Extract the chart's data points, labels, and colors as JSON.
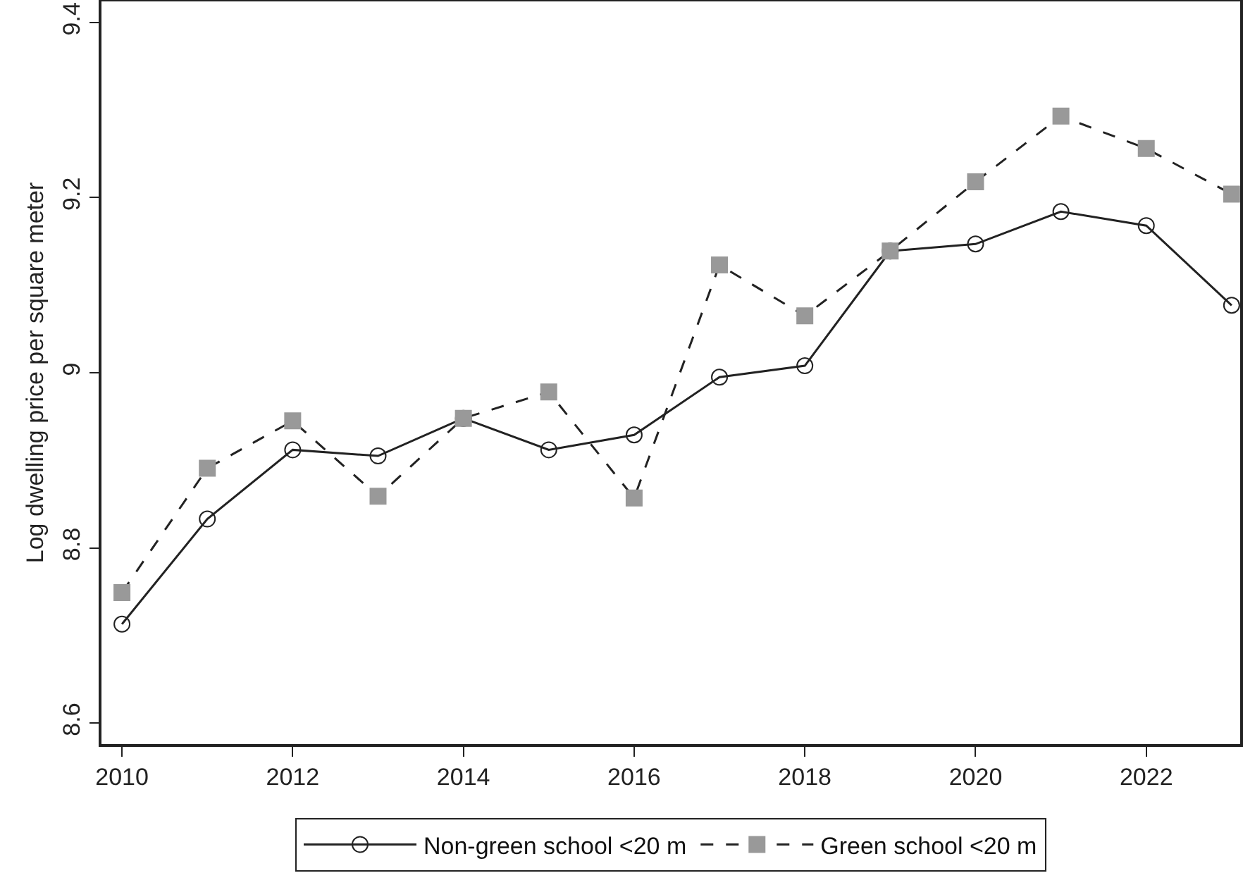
{
  "chart_data": {
    "type": "line",
    "ylabel": "Log dwelling price per square meter",
    "x": [
      2010,
      2011,
      2012,
      2013,
      2014,
      2015,
      2016,
      2017,
      2018,
      2019,
      2020,
      2021,
      2022,
      2023
    ],
    "series": [
      {
        "name": "Non-green school <20 m",
        "color": "#222222",
        "marker": "circle",
        "line_style": "solid",
        "values": [
          8.713,
          8.833,
          8.912,
          8.905,
          8.948,
          8.912,
          8.929,
          8.995,
          9.008,
          9.139,
          9.147,
          9.184,
          9.168,
          9.077
        ]
      },
      {
        "name": "Green school <20 m",
        "color": "#999999",
        "marker": "square",
        "line_style": "dashed",
        "values": [
          8.749,
          8.891,
          8.945,
          8.859,
          8.948,
          8.978,
          8.857,
          9.123,
          9.065,
          9.139,
          9.218,
          9.293,
          9.256,
          9.204
        ]
      }
    ],
    "xlim": [
      2009.76,
      2023.1
    ],
    "xticks": [
      2010,
      2012,
      2014,
      2016,
      2018,
      2020,
      2022
    ],
    "ylim": [
      8.576,
      9.424
    ],
    "yticks": [
      {
        "value": 8.6,
        "label": "8.6"
      },
      {
        "value": 8.8,
        "label": "8.8"
      },
      9,
      {
        "value": 9.2,
        "label": "9.2"
      },
      {
        "value": 9.4,
        "label": "9.4"
      }
    ],
    "grid": false,
    "legend": "bottom"
  }
}
